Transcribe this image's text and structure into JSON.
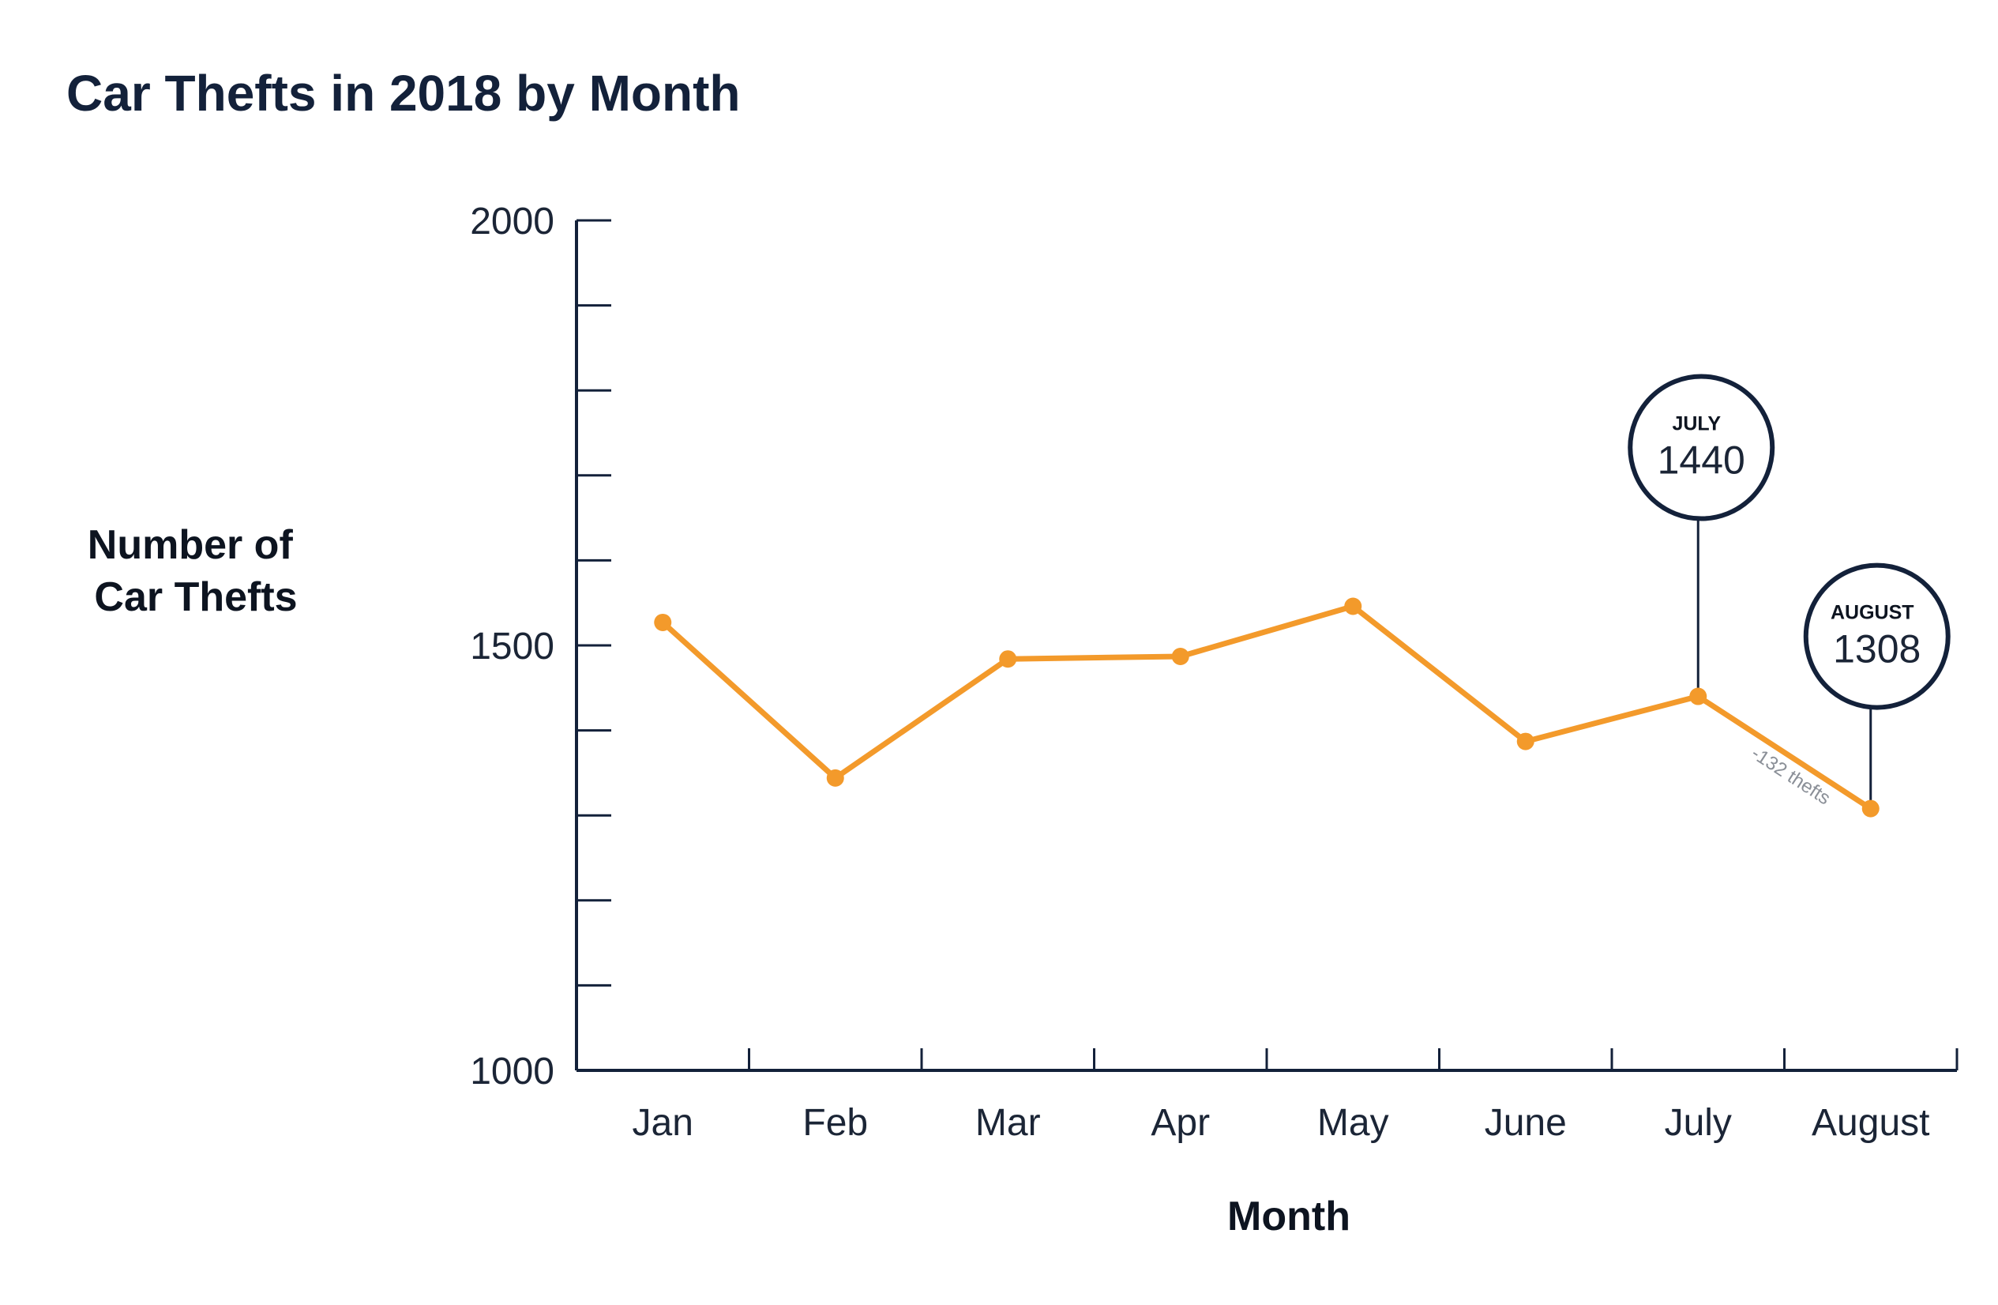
{
  "chart_data": {
    "type": "line",
    "title": "Car Thefts in 2018 by Month",
    "xlabel": "Month",
    "ylabel": [
      "Number of",
      "Car Thefts"
    ],
    "categories": [
      "Jan",
      "Feb",
      "Mar",
      "Apr",
      "May",
      "June",
      "July",
      "August"
    ],
    "values": [
      1527,
      1344,
      1484,
      1487,
      1546,
      1387,
      1440,
      1308
    ],
    "ylim": [
      1000,
      2000
    ],
    "yticks": [
      1000,
      1100,
      1200,
      1300,
      1400,
      1500,
      1600,
      1700,
      1800,
      1900,
      2000
    ],
    "ytick_labels": [
      "1000",
      "1500",
      "2000"
    ],
    "line_color": "#f39a2b",
    "axis_color": "#13213a",
    "callouts": [
      {
        "month": "JULY",
        "value": "1440",
        "index": 6
      },
      {
        "month": "AUGUST",
        "value": "1308",
        "index": 7
      }
    ],
    "annotation": {
      "text": "-132 thefts",
      "between": [
        6,
        7
      ]
    }
  }
}
